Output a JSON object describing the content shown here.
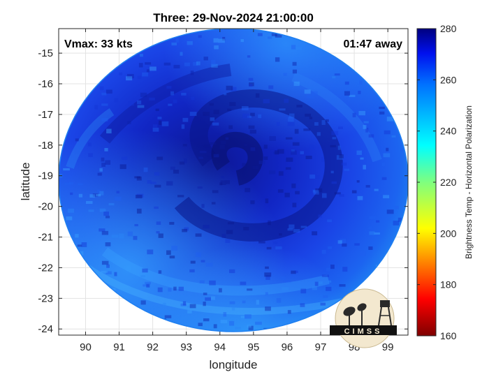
{
  "title": "Three: 29-Nov-2024 21:00:00",
  "vmax_text": "Vmax: 33 kts",
  "time_away": "01:47 away",
  "xlabel": "longitude",
  "ylabel": "latitude",
  "colorbar_label": "Brightness Temp - Horizontal Polarization",
  "logo_text": "CIMSS",
  "colors": {
    "disc_dark": "#0a1a9a",
    "disc_mid": "#1a44e6",
    "disc_light": "#1e8cf0",
    "background": "#ffffff"
  },
  "chart_data": {
    "type": "heatmap",
    "x_ticks": [
      "90",
      "91",
      "92",
      "93",
      "94",
      "95",
      "96",
      "97",
      "98",
      "99"
    ],
    "y_ticks": [
      "-15",
      "-16",
      "-17",
      "-18",
      "-19",
      "-20",
      "-21",
      "-22",
      "-23",
      "-24"
    ],
    "xlim": [
      89.2,
      99.6
    ],
    "ylim": [
      -24.2,
      -14.2
    ],
    "grid": true,
    "storm_center": {
      "lon": 94.2,
      "lat": -19.2
    },
    "colorbar": {
      "ticks": [
        "280",
        "260",
        "240",
        "220",
        "200",
        "180",
        "160"
      ],
      "range": [
        160,
        280
      ],
      "colormap": "jet"
    }
  }
}
